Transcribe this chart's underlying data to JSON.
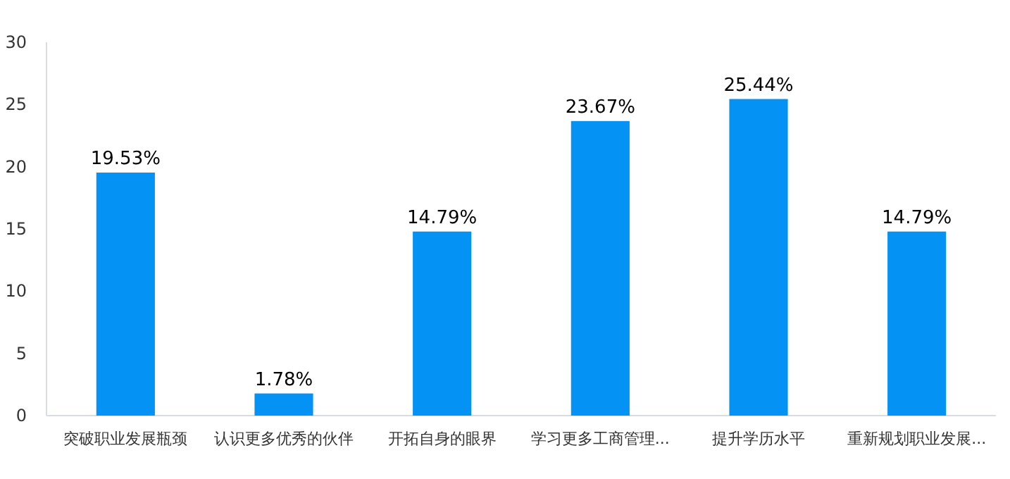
{
  "chart_data": {
    "type": "bar",
    "categories": [
      "突破职业发展瓶颈",
      "认识更多优秀的伙伴",
      "开拓自身的眼界",
      "学习更多工商管理...",
      "提升学历水平",
      "重新规划职业发展..."
    ],
    "values": [
      19.53,
      1.78,
      14.79,
      23.67,
      25.44,
      14.79
    ],
    "value_labels": [
      "19.53%",
      "1.78%",
      "14.79%",
      "23.67%",
      "25.44%",
      "14.79%"
    ],
    "color": "#0592f5",
    "ylim": [
      0,
      30
    ],
    "yticks": [
      0,
      5,
      10,
      15,
      20,
      25,
      30
    ],
    "grid": false
  }
}
